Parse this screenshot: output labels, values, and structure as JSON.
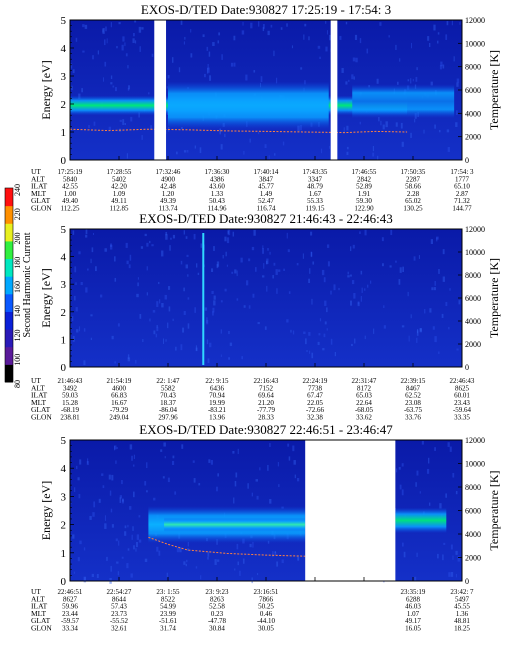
{
  "colorbar": {
    "label": "Second Harmonic Current",
    "ticks": [
      "80",
      "100",
      "120",
      "140",
      "160",
      "180",
      "200",
      "220",
      "240"
    ],
    "colors": [
      "#000000",
      "#5a1a9a",
      "#2a1ab8",
      "#0a20d8",
      "#0a58ff",
      "#00a8ff",
      "#00e8c0",
      "#30f040",
      "#e8f020",
      "#ff9000",
      "#ff1010"
    ]
  },
  "chart_data": [
    {
      "type": "heatmap",
      "title": "EXOS-D/TED",
      "date": "Date:930827",
      "time_range": "17:25:19 - 17:54: 3",
      "ylabel": "Energy [eV]",
      "y2label": "Temperature [K]",
      "ylim": [
        0,
        5
      ],
      "yticks": [
        "0",
        "1",
        "2",
        "3",
        "4",
        "5"
      ],
      "y2lim": [
        0,
        12000
      ],
      "y2ticks": [
        "0",
        "2000",
        "4000",
        "6000",
        "8000",
        "10000",
        "12000"
      ],
      "gaps": [
        [
          0.215,
          0.245
        ],
        [
          0.665,
          0.682
        ]
      ],
      "bands": [
        {
          "center_ev": 1.95,
          "width_ev": 0.7,
          "from": 0.0,
          "to": 0.86,
          "color": "#00e878"
        },
        {
          "center_ev": 1.95,
          "width_ev": 1.7,
          "from": 0.25,
          "to": 0.66,
          "color": "#0aa8ff"
        },
        {
          "center_ev": 2.1,
          "width_ev": 1.2,
          "from": 0.72,
          "to": 0.98,
          "color": "#0a70e8"
        }
      ],
      "temperature_trace": {
        "x": [
          0,
          0.1,
          0.2,
          0.3,
          0.4,
          0.5,
          0.6,
          0.7,
          0.78,
          0.86
        ],
        "energy_ev": [
          1.1,
          1.05,
          1.1,
          1.08,
          1.04,
          1.02,
          1.0,
          0.98,
          1.02,
          1.0
        ]
      },
      "spikes": [],
      "annotation_table": {
        "row_labels": [
          "UT",
          "ALT",
          "ILAT",
          "MLT",
          "GLAT",
          "GLON"
        ],
        "columns": [
          [
            "17:25:19",
            "5840",
            "42.55",
            "1.00",
            "49.40",
            "112.25"
          ],
          [
            "17:28:55",
            "5402",
            "42.20",
            "1.09",
            "49.11",
            "112.85"
          ],
          [
            "17:32:46",
            "4900",
            "42.48",
            "1.20",
            "49.39",
            "113.74"
          ],
          [
            "17:36:30",
            "4386",
            "43.60",
            "1.33",
            "50.43",
            "114.96"
          ],
          [
            "17:40:14",
            "3847",
            "45.77",
            "1.49",
            "52.47",
            "116.74"
          ],
          [
            "17:43:35",
            "3347",
            "48.79",
            "1.67",
            "55.33",
            "119.15"
          ],
          [
            "17:46:55",
            "2842",
            "52.89",
            "1.91",
            "59.30",
            "122.90"
          ],
          [
            "17:50:35",
            "2287",
            "58.66",
            "2.28",
            "65.02",
            "130.25"
          ],
          [
            "17:54: 3",
            "1777",
            "65.10",
            "2.87",
            "71.32",
            "144.77"
          ]
        ]
      }
    },
    {
      "type": "heatmap",
      "title": "EXOS-D/TED",
      "date": "Date:930827",
      "time_range": "21:46:43 - 22:46:43",
      "ylabel": "Energy [eV]",
      "y2label": "Temperature [K]",
      "ylim": [
        0,
        5
      ],
      "yticks": [
        "0",
        "1",
        "2",
        "3",
        "4",
        "5"
      ],
      "y2lim": [
        0,
        12000
      ],
      "y2ticks": [
        "0",
        "2000",
        "4000",
        "6000",
        "8000",
        "10000",
        "12000"
      ],
      "gaps": [],
      "bands": [],
      "temperature_trace": null,
      "spikes": [
        0.34
      ],
      "annotation_table": {
        "row_labels": [
          "UT",
          "ALT",
          "ILAT",
          "MLT",
          "GLAT",
          "GLON"
        ],
        "columns": [
          [
            "21:46:43",
            "3492",
            "59.03",
            "15.28",
            "-68.19",
            "238.81"
          ],
          [
            "21:54:19",
            "4600",
            "66.83",
            "16.67",
            "-79.29",
            "249.04"
          ],
          [
            "22: 1:47",
            "5582",
            "70.43",
            "18.37",
            "-86.04",
            "297.96"
          ],
          [
            "22: 9:15",
            "6436",
            "70.94",
            "19.99",
            "-83.21",
            "13.96"
          ],
          [
            "22:16:43",
            "7152",
            "69.64",
            "21.20",
            "-77.79",
            "28.33"
          ],
          [
            "22:24:19",
            "7738",
            "67.47",
            "22.05",
            "-72.66",
            "32.38"
          ],
          [
            "22:31:47",
            "8172",
            "65.03",
            "22.64",
            "-68.05",
            "33.62"
          ],
          [
            "22:39:15",
            "8467",
            "62.52",
            "23.08",
            "-63.75",
            "33.76"
          ],
          [
            "22:46:43",
            "8625",
            "60.01",
            "23.43",
            "-59.64",
            "33.35"
          ]
        ]
      }
    },
    {
      "type": "heatmap",
      "title": "EXOS-D/TED",
      "date": "Date:930827",
      "time_range": "22:46:51 - 23:46:47",
      "ylabel": "Energy [eV]",
      "y2label": "Temperature [K]",
      "ylim": [
        0,
        5
      ],
      "yticks": [
        "0",
        "1",
        "2",
        "3",
        "4",
        "5"
      ],
      "y2lim": [
        0,
        12000
      ],
      "y2ticks": [
        "0",
        "2000",
        "4000",
        "6000",
        "8000",
        "10000",
        "12000"
      ],
      "gaps": [
        [
          0.6,
          0.83
        ]
      ],
      "bands": [
        {
          "center_ev": 2.0,
          "width_ev": 1.3,
          "from": 0.2,
          "to": 0.6,
          "color": "#0ab0ff"
        },
        {
          "center_ev": 2.0,
          "width_ev": 0.5,
          "from": 0.24,
          "to": 0.6,
          "color": "#30e8b0"
        },
        {
          "center_ev": 2.15,
          "width_ev": 0.9,
          "from": 0.83,
          "to": 0.96,
          "color": "#00e080"
        }
      ],
      "temperature_trace": {
        "x": [
          0.2,
          0.25,
          0.3,
          0.4,
          0.5,
          0.6
        ],
        "energy_ev": [
          1.55,
          1.3,
          1.1,
          0.98,
          0.92,
          0.88
        ]
      },
      "spikes": [],
      "annotation_table": {
        "row_labels": [
          "UT",
          "ALT",
          "ILAT",
          "MLT",
          "GLAT",
          "GLON"
        ],
        "columns": [
          [
            "22:46:51",
            "8627",
            "59.96",
            "23.44",
            "-59.57",
            "33.34"
          ],
          [
            "22:54:27",
            "8644",
            "57.43",
            "23.73",
            "-55.52",
            "32.61"
          ],
          [
            "23: 1:55",
            "8522",
            "54.99",
            "23.99",
            "-51.61",
            "31.74"
          ],
          [
            "23: 9:23",
            "8263",
            "52.58",
            "0.23",
            "-47.78",
            "30.84"
          ],
          [
            "23:16:51",
            "7866",
            "50.25",
            "0.46",
            "-44.10",
            "30.05"
          ],
          null,
          null,
          [
            "23:35:19",
            "6288",
            "46.03",
            "1.07",
            "49.17",
            "16.05"
          ],
          [
            "23:42: 7",
            "5497",
            "45.55",
            "1.36",
            "48.81",
            "18.25"
          ]
        ]
      }
    }
  ]
}
